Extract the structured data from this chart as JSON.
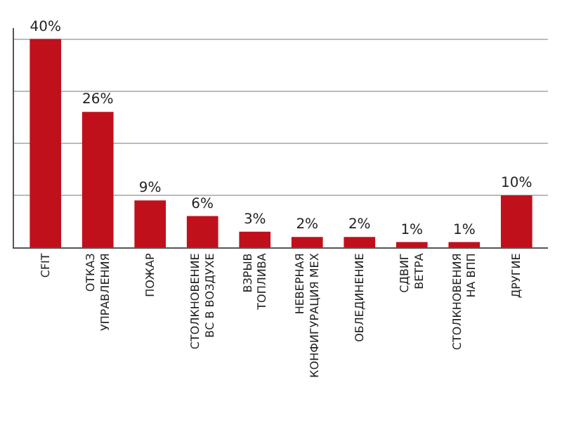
{
  "chart_data": {
    "type": "bar",
    "categories": [
      "CFIT",
      "ОТКАЗ\nУПРАВЛЕНИЯ",
      "ПОЖАР",
      "СТОЛКНОВЕНИЕ\nВС В ВОЗДУХЕ",
      "ВЗРЫВ\nТОПЛИВА",
      "НЕВЕРНАЯ\nКОНФИГУРАЦИЯ МЕХ",
      "ОБЛЕДИНЕНИЕ",
      "СДВИГ\nВЕТРА",
      "СТОЛКНОВЕНИЯ\nНА ВПП",
      "ДРУГИЕ"
    ],
    "values": [
      40,
      26,
      9,
      6,
      3,
      2,
      2,
      1,
      1,
      10
    ],
    "value_labels": [
      "40%",
      "26%",
      "9%",
      "6%",
      "3%",
      "2%",
      "2%",
      "1%",
      "1%",
      "10%"
    ],
    "color": "#c0101c",
    "grid": "y",
    "tick_labels": "x",
    "legend": false
  }
}
